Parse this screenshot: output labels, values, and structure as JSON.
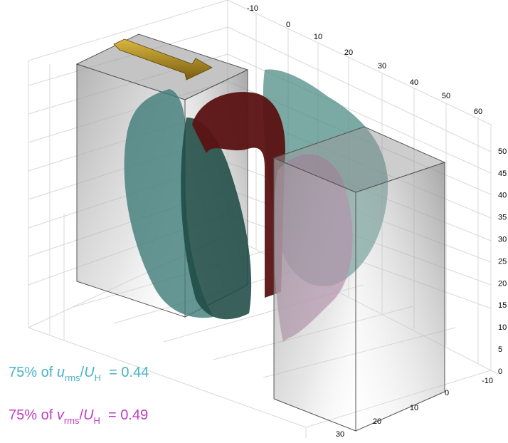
{
  "axes": {
    "top_ticks": [
      -10,
      0,
      10,
      20,
      30,
      40,
      50,
      60
    ],
    "vertical_ticks": [
      50,
      45,
      40,
      35,
      30,
      25,
      20,
      15,
      10,
      5,
      0
    ],
    "bottom_ticks": [
      -10,
      0,
      10,
      20,
      30
    ]
  },
  "annotations": [
    {
      "lead": "75% of ",
      "variable": "u",
      "subscript": "rms",
      "slash": "/",
      "reference": "U",
      "reference_subscript": "H",
      "result": "= 0.44"
    },
    {
      "lead": "75% of ",
      "variable": "v",
      "subscript": "rms",
      "slash": "/",
      "reference": "U",
      "reference_subscript": "H",
      "result": "= 0.49"
    }
  ]
}
